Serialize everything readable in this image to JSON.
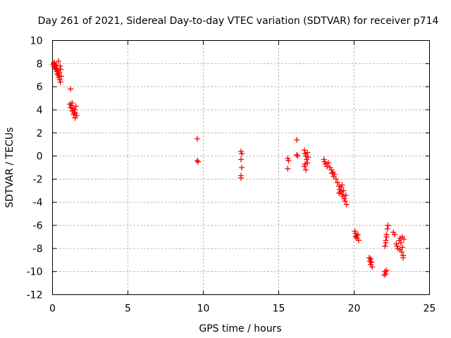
{
  "chart_data": {
    "type": "scatter",
    "title": "Day 261 of 2021, Sidereal Day-to-day VTEC variation (SDTVAR) for receiver p714",
    "xlabel": "GPS time / hours",
    "ylabel": "SDTVAR / TECUs",
    "xlim": [
      0,
      25
    ],
    "ylim": [
      -12,
      10
    ],
    "xticks": [
      0,
      5,
      10,
      15,
      20,
      25
    ],
    "yticks": [
      -12,
      -10,
      -8,
      -6,
      -4,
      -2,
      0,
      2,
      4,
      6,
      8,
      10
    ],
    "grid": true,
    "marker": "plus",
    "color": "#ff0000",
    "series": [
      {
        "name": "SDTVAR",
        "points": [
          [
            0.05,
            7.9
          ],
          [
            0.08,
            8.0
          ],
          [
            0.1,
            7.7
          ],
          [
            0.12,
            8.1
          ],
          [
            0.15,
            7.8
          ],
          [
            0.18,
            7.6
          ],
          [
            0.2,
            7.9
          ],
          [
            0.22,
            7.5
          ],
          [
            0.25,
            7.8
          ],
          [
            0.28,
            7.3
          ],
          [
            0.3,
            7.6
          ],
          [
            0.32,
            7.1
          ],
          [
            0.35,
            7.4
          ],
          [
            0.38,
            7.0
          ],
          [
            0.4,
            8.2
          ],
          [
            0.42,
            6.8
          ],
          [
            0.45,
            7.2
          ],
          [
            0.48,
            6.6
          ],
          [
            0.5,
            7.8
          ],
          [
            0.52,
            6.4
          ],
          [
            0.55,
            7.5
          ],
          [
            0.58,
            6.9
          ],
          [
            1.2,
            5.8
          ],
          [
            1.15,
            4.5
          ],
          [
            1.2,
            4.2
          ],
          [
            1.25,
            4.4
          ],
          [
            1.3,
            3.9
          ],
          [
            1.35,
            4.1
          ],
          [
            1.4,
            3.6
          ],
          [
            1.45,
            3.8
          ],
          [
            1.5,
            3.3
          ],
          [
            1.55,
            4.3
          ],
          [
            1.6,
            3.5
          ],
          [
            1.3,
            4.6
          ],
          [
            1.45,
            4.0
          ],
          [
            1.5,
            3.7
          ],
          [
            9.6,
            1.5
          ],
          [
            9.6,
            -0.4
          ],
          [
            9.65,
            -0.5
          ],
          [
            12.5,
            0.4
          ],
          [
            12.55,
            0.2
          ],
          [
            12.5,
            -0.3
          ],
          [
            12.55,
            -1.0
          ],
          [
            12.5,
            -1.7
          ],
          [
            12.5,
            -1.9
          ],
          [
            15.6,
            -0.2
          ],
          [
            15.65,
            -0.4
          ],
          [
            15.6,
            -1.1
          ],
          [
            16.2,
            1.4
          ],
          [
            16.2,
            0.1
          ],
          [
            16.25,
            0.0
          ],
          [
            16.7,
            0.5
          ],
          [
            16.75,
            0.2
          ],
          [
            16.8,
            0.0
          ],
          [
            16.85,
            -0.3
          ],
          [
            16.9,
            -0.6
          ],
          [
            16.7,
            -0.9
          ],
          [
            16.8,
            -1.2
          ],
          [
            16.9,
            0.3
          ],
          [
            16.95,
            -0.1
          ],
          [
            16.75,
            -0.7
          ],
          [
            18.0,
            -0.3
          ],
          [
            18.05,
            -0.5
          ],
          [
            18.1,
            -0.7
          ],
          [
            18.2,
            -0.9
          ],
          [
            18.3,
            -0.6
          ],
          [
            18.4,
            -1.0
          ],
          [
            18.5,
            -1.2
          ],
          [
            18.55,
            -1.5
          ],
          [
            18.6,
            -1.4
          ],
          [
            18.65,
            -1.8
          ],
          [
            18.7,
            -1.6
          ],
          [
            18.8,
            -2.0
          ],
          [
            18.9,
            -2.3
          ],
          [
            19.0,
            -2.6
          ],
          [
            19.05,
            -2.9
          ],
          [
            19.1,
            -3.1
          ],
          [
            19.15,
            -2.7
          ],
          [
            19.2,
            -3.3
          ],
          [
            19.25,
            -3.5
          ],
          [
            19.3,
            -3.0
          ],
          [
            19.35,
            -3.7
          ],
          [
            19.4,
            -3.9
          ],
          [
            19.45,
            -3.4
          ],
          [
            19.5,
            -4.2
          ],
          [
            19.0,
            -3.2
          ],
          [
            19.2,
            -2.5
          ],
          [
            20.05,
            -6.5
          ],
          [
            20.1,
            -6.7
          ],
          [
            20.15,
            -6.9
          ],
          [
            20.2,
            -7.1
          ],
          [
            20.25,
            -6.8
          ],
          [
            20.3,
            -7.3
          ],
          [
            20.1,
            -7.0
          ],
          [
            21.0,
            -8.8
          ],
          [
            21.05,
            -9.1
          ],
          [
            21.1,
            -9.4
          ],
          [
            21.15,
            -9.2
          ],
          [
            21.2,
            -9.6
          ],
          [
            21.1,
            -8.9
          ],
          [
            22.0,
            -10.3
          ],
          [
            22.05,
            -10.0
          ],
          [
            22.1,
            -10.2
          ],
          [
            22.15,
            -9.9
          ],
          [
            22.05,
            -7.8
          ],
          [
            22.1,
            -7.3
          ],
          [
            22.15,
            -6.8
          ],
          [
            22.2,
            -6.3
          ],
          [
            22.25,
            -6.0
          ],
          [
            22.1,
            -7.5
          ],
          [
            22.15,
            -7.0
          ],
          [
            22.6,
            -6.6
          ],
          [
            22.7,
            -6.8
          ],
          [
            22.8,
            -7.6
          ],
          [
            22.85,
            -7.8
          ],
          [
            22.9,
            -8.0
          ],
          [
            23.0,
            -7.3
          ],
          [
            23.05,
            -7.1
          ],
          [
            23.1,
            -7.5
          ],
          [
            23.15,
            -8.3
          ],
          [
            23.2,
            -7.9
          ],
          [
            23.25,
            -8.6
          ],
          [
            23.3,
            -7.2
          ],
          [
            23.05,
            -8.1
          ],
          [
            23.2,
            -7.0
          ],
          [
            23.25,
            -8.8
          ]
        ]
      }
    ]
  }
}
